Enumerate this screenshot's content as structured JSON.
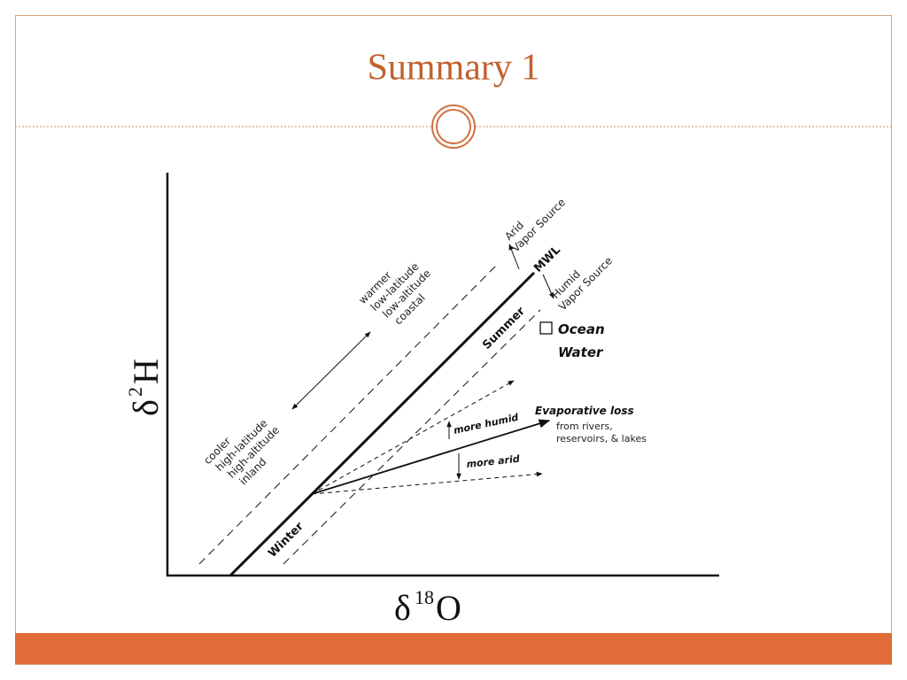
{
  "header": {
    "title": "Summary 1"
  },
  "diagram": {
    "x_axis": {
      "symbol": "δ",
      "superscript": "18",
      "letter": "O"
    },
    "y_axis": {
      "symbol": "δ",
      "superscript": "2",
      "letter": "H"
    },
    "mwl": "MWL",
    "arid": {
      "label": "Arid",
      "sub": "Vapor Source"
    },
    "humid": {
      "label": "Humid",
      "sub": "Vapor Source"
    },
    "warm": [
      "warmer",
      "low-latitude",
      "low-altitude",
      "coastal"
    ],
    "cool": [
      "cooler",
      "high-latitude",
      "high-altitude",
      "inland"
    ],
    "summer": "Summer",
    "winter": "Winter",
    "ocean": [
      "Ocean",
      "Water"
    ],
    "more_humid": "more humid",
    "more_arid": "more arid",
    "evaporative": {
      "title": "Evaporative loss",
      "lines": [
        "from rivers,",
        "reservoirs, & lakes"
      ]
    }
  }
}
